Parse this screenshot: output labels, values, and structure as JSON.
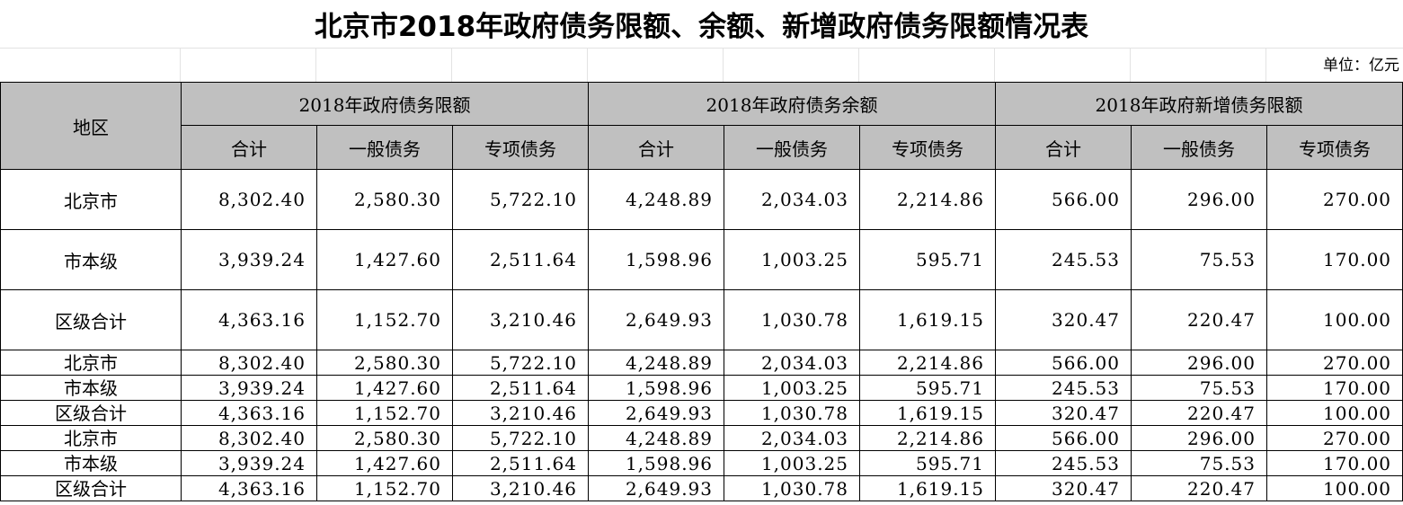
{
  "title": "北京市2018年政府债务限额、余额、新增政府债务限额情况表",
  "unit": "单位：亿元",
  "header": {
    "region": "地区",
    "groups": [
      "2018年政府债务限额",
      "2018年政府债务余额",
      "2018年政府新增债务限额"
    ],
    "subs": [
      "合计",
      "一般债务",
      "专项债务",
      "合计",
      "一般债务",
      "专项债务",
      "合计",
      "一般债务",
      "专项债务"
    ]
  },
  "rows": [
    {
      "name": "北京市",
      "v": [
        "8,302.40",
        "2,580.30",
        "5,722.10",
        "4,248.89",
        "2,034.03",
        "2,214.86",
        "566.00",
        "296.00",
        "270.00"
      ]
    },
    {
      "name": "市本级",
      "v": [
        "3,939.24",
        "1,427.60",
        "2,511.64",
        "1,598.96",
        "1,003.25",
        "595.71",
        "245.53",
        "75.53",
        "170.00"
      ]
    },
    {
      "name": "区级合计",
      "v": [
        "4,363.16",
        "1,152.70",
        "3,210.46",
        "2,649.93",
        "1,030.78",
        "1,619.15",
        "320.47",
        "220.47",
        "100.00"
      ]
    },
    {
      "name": "北京市",
      "v": [
        "8,302.40",
        "2,580.30",
        "5,722.10",
        "4,248.89",
        "2,034.03",
        "2,214.86",
        "566.00",
        "296.00",
        "270.00"
      ]
    },
    {
      "name": "市本级",
      "v": [
        "3,939.24",
        "1,427.60",
        "2,511.64",
        "1,598.96",
        "1,003.25",
        "595.71",
        "245.53",
        "75.53",
        "170.00"
      ]
    },
    {
      "name": "区级合计",
      "v": [
        "4,363.16",
        "1,152.70",
        "3,210.46",
        "2,649.93",
        "1,030.78",
        "1,619.15",
        "320.47",
        "220.47",
        "100.00"
      ]
    },
    {
      "name": "北京市",
      "v": [
        "8,302.40",
        "2,580.30",
        "5,722.10",
        "4,248.89",
        "2,034.03",
        "2,214.86",
        "566.00",
        "296.00",
        "270.00"
      ]
    },
    {
      "name": "市本级",
      "v": [
        "3,939.24",
        "1,427.60",
        "2,511.64",
        "1,598.96",
        "1,003.25",
        "595.71",
        "245.53",
        "75.53",
        "170.00"
      ]
    },
    {
      "name": "区级合计",
      "v": [
        "4,363.16",
        "1,152.70",
        "3,210.46",
        "2,649.93",
        "1,030.78",
        "1,619.15",
        "320.47",
        "220.47",
        "100.00"
      ]
    }
  ]
}
